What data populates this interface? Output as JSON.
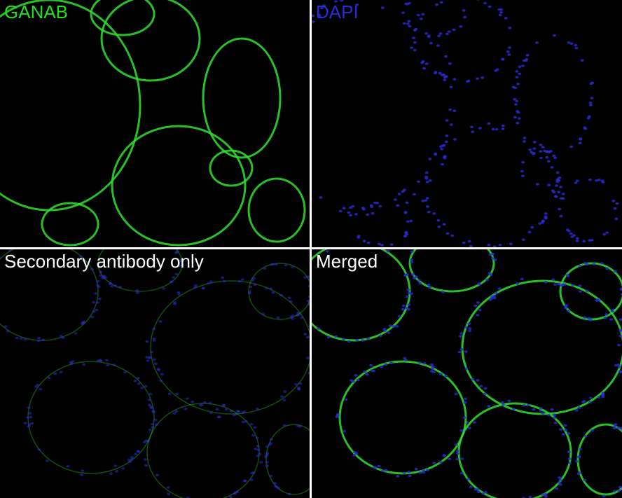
{
  "figure": {
    "panels": [
      {
        "label": "GANAB",
        "label_color": "#1ee01e",
        "channel": "green"
      },
      {
        "label": "DAPI",
        "label_color": "#2a2ad8",
        "channel": "blue"
      },
      {
        "label": "Secondary antibody only",
        "label_color": "#ffffff",
        "channel": "secondary"
      },
      {
        "label": "Merged",
        "label_color": "#ffffff",
        "channel": "merged"
      }
    ],
    "colors": {
      "green": "#2fe02f",
      "blue": "#2b2bd6",
      "background": "#000000",
      "divider": "#ffffff"
    }
  }
}
